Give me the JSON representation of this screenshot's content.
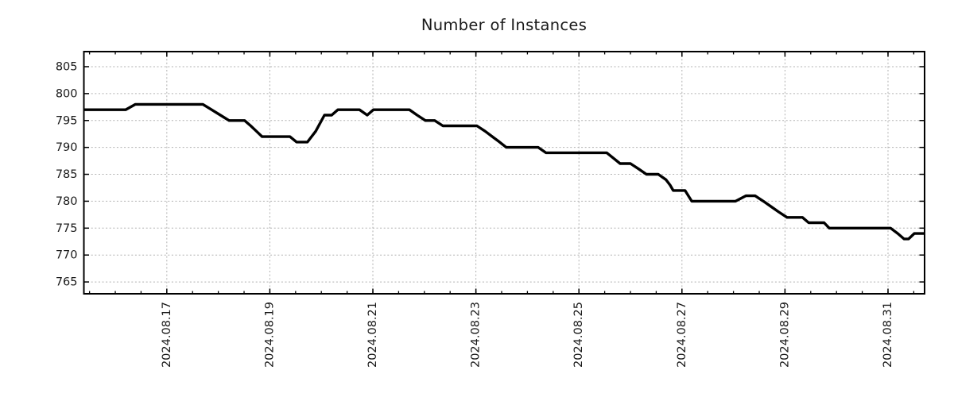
{
  "chart_data": {
    "type": "line",
    "title": "Number of Instances",
    "x_axis": {
      "label": "",
      "tick_labels": [
        "2024.08.17",
        "2024.08.19",
        "2024.08.21",
        "2024.08.23",
        "2024.08.25",
        "2024.08.27",
        "2024.08.29",
        "2024.08.31"
      ],
      "major_tick_days": [
        1.61,
        3.61,
        5.61,
        7.61,
        9.61,
        11.61,
        13.61,
        15.61
      ],
      "minor_tick_start_day": 0.11,
      "minor_tick_step_days": 0.5,
      "range_days": [
        0,
        16.32
      ],
      "note": "x values are days from the left plot edge; labeled gridlines fall every 2 days"
    },
    "y_axis": {
      "label": "",
      "ticks": [
        765,
        770,
        775,
        780,
        785,
        790,
        795,
        800,
        805
      ],
      "range": [
        762.8,
        807.8
      ]
    },
    "grid": true,
    "legend": false,
    "series": [
      {
        "name": "Number of Instances",
        "color": "#000000",
        "points": [
          [
            0.0,
            797
          ],
          [
            0.81,
            797
          ],
          [
            1.0,
            798
          ],
          [
            2.31,
            798
          ],
          [
            2.48,
            797
          ],
          [
            2.65,
            796
          ],
          [
            2.82,
            795
          ],
          [
            3.12,
            795
          ],
          [
            3.24,
            794
          ],
          [
            3.35,
            793
          ],
          [
            3.46,
            792
          ],
          [
            4.0,
            792
          ],
          [
            4.13,
            791
          ],
          [
            4.34,
            791
          ],
          [
            4.5,
            793
          ],
          [
            4.67,
            796
          ],
          [
            4.81,
            796
          ],
          [
            4.93,
            797
          ],
          [
            5.35,
            797
          ],
          [
            5.5,
            796
          ],
          [
            5.62,
            797
          ],
          [
            6.32,
            797
          ],
          [
            6.47,
            796
          ],
          [
            6.63,
            795
          ],
          [
            6.81,
            795
          ],
          [
            6.97,
            794
          ],
          [
            7.63,
            794
          ],
          [
            7.79,
            793
          ],
          [
            7.93,
            792
          ],
          [
            8.07,
            791
          ],
          [
            8.2,
            790
          ],
          [
            8.82,
            790
          ],
          [
            8.97,
            789
          ],
          [
            10.15,
            789
          ],
          [
            10.28,
            788
          ],
          [
            10.41,
            787
          ],
          [
            10.61,
            787
          ],
          [
            10.77,
            786
          ],
          [
            10.92,
            785
          ],
          [
            11.15,
            785
          ],
          [
            11.3,
            784
          ],
          [
            11.38,
            783
          ],
          [
            11.44,
            782
          ],
          [
            11.67,
            782
          ],
          [
            11.8,
            780
          ],
          [
            12.65,
            780
          ],
          [
            12.85,
            781
          ],
          [
            13.03,
            781
          ],
          [
            13.19,
            780
          ],
          [
            13.34,
            779
          ],
          [
            13.49,
            778
          ],
          [
            13.65,
            777
          ],
          [
            13.95,
            777
          ],
          [
            14.07,
            776
          ],
          [
            14.37,
            776
          ],
          [
            14.47,
            775
          ],
          [
            15.66,
            775
          ],
          [
            15.8,
            774
          ],
          [
            15.92,
            773
          ],
          [
            16.01,
            773
          ],
          [
            16.12,
            774
          ],
          [
            16.32,
            774
          ]
        ]
      }
    ]
  },
  "style": {
    "background": "#ffffff",
    "line_color": "#000000",
    "grid_color": "#b0b0b0",
    "border_color": "#000000",
    "text_color": "#1a1a1a"
  }
}
